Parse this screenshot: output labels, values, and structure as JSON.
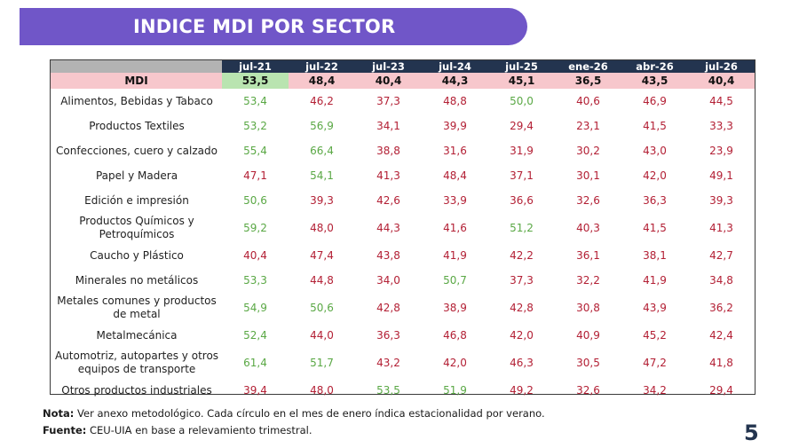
{
  "title": "INDICE MDI POR SECTOR",
  "colors": {
    "banner": "#7056c8",
    "header": "#23344f",
    "negative": "#b32035",
    "positive": "#5aa845",
    "mdi_bad": "#f7c7cc",
    "mdi_good": "#b9e4b0"
  },
  "table": {
    "columns": [
      "jul-21",
      "jul-22",
      "jul-23",
      "jul-24",
      "jul-25",
      "ene-26",
      "abr-26",
      "jul-26"
    ],
    "mdi": {
      "label": "MDI",
      "values": [
        "53,5",
        "48,4",
        "40,4",
        "44,3",
        "45,1",
        "36,5",
        "43,5",
        "40,4"
      ]
    },
    "rows": [
      {
        "label": "Alimentos, Bebidas y Tabaco",
        "values": [
          "53,4",
          "46,2",
          "37,3",
          "48,8",
          "50,0",
          "40,6",
          "46,9",
          "44,5"
        ]
      },
      {
        "label": "Productos Textiles",
        "values": [
          "53,2",
          "56,9",
          "34,1",
          "39,9",
          "29,4",
          "23,1",
          "41,5",
          "33,3"
        ]
      },
      {
        "label": "Confecciones, cuero y calzado",
        "values": [
          "55,4",
          "66,4",
          "38,8",
          "31,6",
          "31,9",
          "30,2",
          "43,0",
          "23,9"
        ]
      },
      {
        "label": "Papel y Madera",
        "values": [
          "47,1",
          "54,1",
          "41,3",
          "48,4",
          "37,1",
          "30,1",
          "42,0",
          "49,1"
        ]
      },
      {
        "label": "Edición e impresión",
        "values": [
          "50,6",
          "39,3",
          "42,6",
          "33,9",
          "36,6",
          "32,6",
          "36,3",
          "39,3"
        ]
      },
      {
        "label": "Productos Químicos y Petroquímicos",
        "values": [
          "59,2",
          "48,0",
          "44,3",
          "41,6",
          "51,2",
          "40,3",
          "41,5",
          "41,3"
        ]
      },
      {
        "label": "Caucho y Plástico",
        "values": [
          "40,4",
          "47,4",
          "43,8",
          "41,9",
          "42,2",
          "36,1",
          "38,1",
          "42,7"
        ]
      },
      {
        "label": "Minerales no metálicos",
        "values": [
          "53,3",
          "44,8",
          "34,0",
          "50,7",
          "37,3",
          "32,2",
          "41,9",
          "34,8"
        ]
      },
      {
        "label": "Metales comunes y productos de metal",
        "values": [
          "54,9",
          "50,6",
          "42,8",
          "38,9",
          "42,8",
          "30,8",
          "43,9",
          "36,2"
        ]
      },
      {
        "label": "Metalmecánica",
        "values": [
          "52,4",
          "44,0",
          "36,3",
          "46,8",
          "42,0",
          "40,9",
          "45,2",
          "42,4"
        ]
      },
      {
        "label": "Automotriz, autopartes y otros equipos de transporte",
        "values": [
          "61,4",
          "51,7",
          "43,2",
          "42,0",
          "46,3",
          "30,5",
          "47,2",
          "41,8"
        ]
      },
      {
        "label": "Otros productos industriales",
        "values": [
          "39,4",
          "48,0",
          "53,5",
          "51,9",
          "49,2",
          "32,6",
          "34,2",
          "29,4"
        ]
      }
    ]
  },
  "notes": {
    "nota_label": "Nota:",
    "nota_text": " Ver anexo metodológico. Cada círculo en el mes de enero índica estacionalidad por verano.",
    "fuente_label": "Fuente:",
    "fuente_text": " CEU-UIA en base a relevamiento trimestral."
  },
  "page_number": "5"
}
